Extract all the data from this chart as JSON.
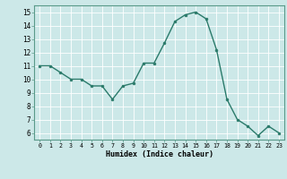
{
  "x": [
    0,
    1,
    2,
    3,
    4,
    5,
    6,
    7,
    8,
    9,
    10,
    11,
    12,
    13,
    14,
    15,
    16,
    17,
    18,
    19,
    20,
    21,
    22,
    23
  ],
  "y": [
    11.0,
    11.0,
    10.5,
    10.0,
    10.0,
    9.5,
    9.5,
    8.5,
    9.5,
    9.7,
    11.2,
    11.2,
    12.7,
    14.3,
    14.8,
    15.0,
    14.5,
    12.2,
    8.5,
    7.0,
    6.5,
    5.8,
    6.5,
    6.0
  ],
  "xlabel": "Humidex (Indice chaleur)",
  "xlim": [
    -0.5,
    23.5
  ],
  "ylim": [
    5.5,
    15.5
  ],
  "yticks": [
    6,
    7,
    8,
    9,
    10,
    11,
    12,
    13,
    14,
    15
  ],
  "xticks": [
    0,
    1,
    2,
    3,
    4,
    5,
    6,
    7,
    8,
    9,
    10,
    11,
    12,
    13,
    14,
    15,
    16,
    17,
    18,
    19,
    20,
    21,
    22,
    23
  ],
  "line_color": "#2a7a6a",
  "bg_color": "#cce8e8",
  "grid_color": "#ffffff",
  "spine_color": "#5a9a8a"
}
